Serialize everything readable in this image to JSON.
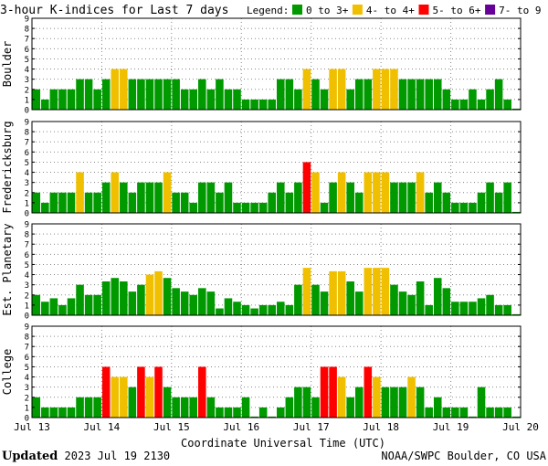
{
  "title": "3-hour K-indices for Last 7 days",
  "legend": {
    "label": "Legend:",
    "items": [
      {
        "label": "0 to 3+",
        "color": "#009900"
      },
      {
        "label": "4- to 4+",
        "color": "#f0c000"
      },
      {
        "label": "5- to 6+",
        "color": "#ff0000"
      },
      {
        "label": "7- to 9",
        "color": "#660099"
      }
    ]
  },
  "x_axis_label": "Coordinate Universal Time (UTC)",
  "footer": {
    "updated_label": "Updated",
    "updated_value": "2023 Jul 19 2130",
    "source": "NOAA/SWPC Boulder, CO USA"
  },
  "chart_data": {
    "type": "bar",
    "x_ticks": [
      "Jul 13",
      "Jul 14",
      "Jul 15",
      "Jul 16",
      "Jul 17",
      "Jul 18",
      "Jul 19",
      "Jul 20"
    ],
    "ylim": [
      0,
      9
    ],
    "y_ticks": [
      0,
      1,
      2,
      3,
      4,
      5,
      6,
      7,
      8,
      9
    ],
    "grid": "dotted",
    "bins_per_day": 8,
    "color_thresholds": {
      "green_max": 3.67,
      "yellow_max": 4.67,
      "red_max": 6.67
    },
    "panels": [
      {
        "station": "Boulder",
        "values": [
          2,
          1,
          2,
          2,
          2,
          3,
          3,
          2,
          3,
          4,
          4,
          3,
          3,
          3,
          3,
          3,
          3,
          2,
          2,
          3,
          2,
          3,
          2,
          2,
          1,
          1,
          1,
          1,
          3,
          3,
          2,
          4,
          3,
          2,
          4,
          4,
          2,
          3,
          3,
          4,
          4,
          4,
          3,
          3,
          3,
          3,
          3,
          2,
          1,
          1,
          2,
          1,
          2,
          3,
          1,
          0.1
        ]
      },
      {
        "station": "Fredericksburg",
        "values": [
          2,
          1,
          2,
          2,
          2,
          4,
          2,
          2,
          3,
          4,
          3,
          2,
          3,
          3,
          3,
          4,
          2,
          2,
          1,
          3,
          3,
          2,
          3,
          1,
          1,
          1,
          1,
          2,
          3,
          2,
          3,
          5,
          4,
          1,
          3,
          4,
          3,
          2,
          4,
          4,
          4,
          3,
          3,
          3,
          4,
          2,
          3,
          2,
          1,
          1,
          1,
          2,
          3,
          2,
          3,
          0.1
        ]
      },
      {
        "station": "Est. Planetary",
        "values": [
          2,
          1.33,
          1.67,
          1,
          1.67,
          3,
          2,
          2,
          3.33,
          3.67,
          3.33,
          2.33,
          3,
          4,
          4.33,
          3.67,
          2.67,
          2.33,
          2,
          2.67,
          2.33,
          0.67,
          1.67,
          1.33,
          1,
          0.67,
          1,
          1,
          1.33,
          1,
          3,
          4.67,
          3,
          2.33,
          4.33,
          4.33,
          3.33,
          2.33,
          4.67,
          4.67,
          4.67,
          3,
          2.33,
          2,
          3.33,
          1,
          3.67,
          2.67,
          1.33,
          1.33,
          1.33,
          1.67,
          2,
          1,
          1,
          0.1
        ]
      },
      {
        "station": "College",
        "values": [
          2,
          1,
          1,
          1,
          1,
          2,
          2,
          2,
          5,
          4,
          4,
          3,
          5,
          4,
          5,
          3,
          2,
          2,
          2,
          5,
          2,
          1,
          1,
          1,
          2,
          0.1,
          1,
          0.1,
          1,
          2,
          3,
          3,
          2,
          5,
          5,
          4,
          2,
          3,
          5,
          4,
          3,
          3,
          3,
          4,
          3,
          1,
          2,
          1,
          1,
          1,
          0.1,
          3,
          1,
          1,
          1,
          0.1
        ]
      }
    ]
  }
}
